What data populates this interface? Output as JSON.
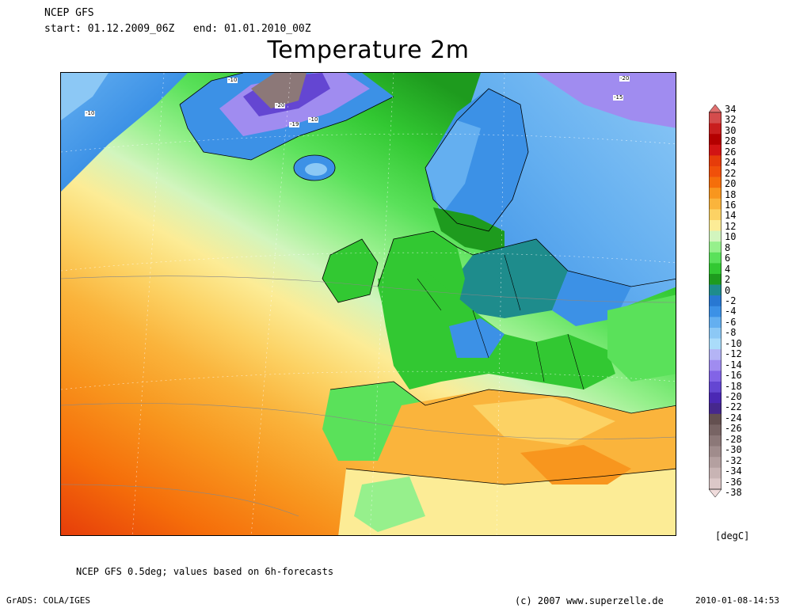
{
  "header": {
    "model": "NCEP GFS",
    "start_label": "start:",
    "start_value": "01.12.2009_06Z",
    "end_label": "end:",
    "end_value": "01.01.2010_00Z"
  },
  "title": "Temperature 2m",
  "legend": {
    "labels": [
      "34",
      "32",
      "30",
      "28",
      "26",
      "24",
      "22",
      "20",
      "18",
      "16",
      "14",
      "12",
      "10",
      "8",
      "6",
      "4",
      "2",
      "0",
      "-2",
      "-4",
      "-6",
      "-8",
      "-10",
      "-12",
      "-14",
      "-16",
      "-18",
      "-20",
      "-22",
      "-24",
      "-26",
      "-28",
      "-30",
      "-32",
      "-34",
      "-36",
      "-38"
    ],
    "colors": [
      "#e0706f",
      "#d44c4c",
      "#c81e1e",
      "#b40000",
      "#d21414",
      "#e63c0a",
      "#f0500a",
      "#f56e0a",
      "#f8961e",
      "#fab43c",
      "#fcd264",
      "#fcec96",
      "#d2f5be",
      "#96f08c",
      "#5ae15a",
      "#32c832",
      "#1e9b1e",
      "#1e8c8c",
      "#2878d2",
      "#3c91e6",
      "#64aff0",
      "#8cc8f5",
      "#aadcfa",
      "#b4b4f5",
      "#a08cf0",
      "#8264e6",
      "#6446d2",
      "#4b28b4",
      "#46288c",
      "#645050",
      "#786464",
      "#8c7878",
      "#a08c8c",
      "#b4a0a0",
      "#c8b4b4",
      "#dcc8c8",
      "#f0dcdc"
    ],
    "units": "[degC]"
  },
  "map_labels": [
    "-10",
    "-20",
    "-19",
    "-10",
    "-10",
    "-20",
    "-15"
  ],
  "footer": {
    "note": "NCEP GFS 0.5deg; values based on 6h-forecasts",
    "software": "GrADS: COLA/IGES",
    "copyright": "(c) 2007 www.superzelle.de",
    "timestamp": "2010-01-08-14:53"
  }
}
